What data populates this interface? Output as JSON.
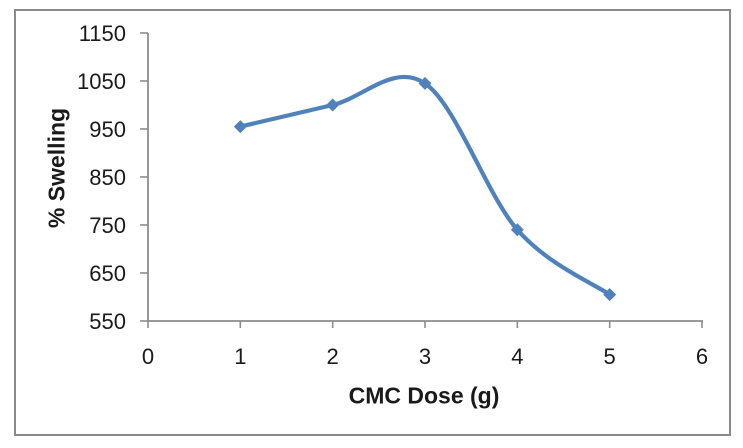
{
  "figure": {
    "background": "#FFFFFF",
    "border_color": "#8A8A8A"
  },
  "chart_data": {
    "type": "line",
    "title": "",
    "xlabel": "CMC Dose (g)",
    "ylabel": "% Swelling",
    "x": [
      1,
      2,
      3,
      4,
      5
    ],
    "series": [
      {
        "name": "% Swelling",
        "values": [
          955,
          1000,
          1045,
          740,
          605
        ]
      }
    ],
    "xlim": [
      0,
      6
    ],
    "ylim": [
      550,
      1150
    ],
    "x_ticks": [
      0,
      1,
      2,
      3,
      4,
      5,
      6
    ],
    "y_ticks": [
      550,
      650,
      750,
      850,
      950,
      1050,
      1150
    ],
    "grid": false,
    "legend_position": "none",
    "line_smooth": true,
    "marker": "diamond",
    "marker_size": 13,
    "line_width": 4.2,
    "colors": {
      "series": "#4F81BD",
      "axis": "#8C8C8C",
      "text": "#1A1A1A"
    }
  }
}
